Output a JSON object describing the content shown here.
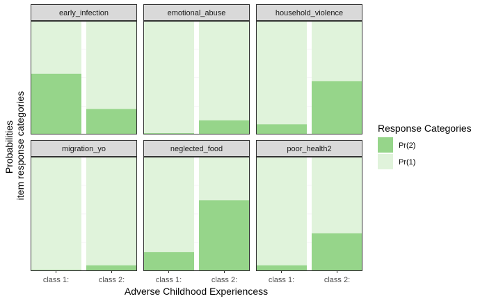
{
  "chart_data": {
    "type": "bar",
    "stacked": true,
    "facet_by": "item",
    "facet_layout": {
      "rows": 2,
      "cols": 3
    },
    "xlabel": "Adverse Childhood Experiencess",
    "ylabel_lines": [
      "Probabilities",
      "item response categories"
    ],
    "categories": [
      "class 1:",
      "class 2:"
    ],
    "ylim": [
      0,
      1
    ],
    "legend": {
      "title": "Response Categories",
      "placement": "right",
      "items": [
        {
          "label": "Pr(2)",
          "color": "#96d58a"
        },
        {
          "label": "Pr(1)",
          "color": "#e0f3db"
        }
      ]
    },
    "series": [
      {
        "name": "Pr(2)",
        "color": "#96d58a"
      },
      {
        "name": "Pr(1)",
        "color": "#e0f3db"
      }
    ],
    "facets": [
      {
        "label": "early_infection",
        "pr2": [
          0.535,
          0.225
        ]
      },
      {
        "label": "emotional_abuse",
        "pr2": [
          0.012,
          0.125
        ]
      },
      {
        "label": "household_violence",
        "pr2": [
          0.09,
          0.47
        ]
      },
      {
        "label": "migration_yo",
        "pr2": [
          0.01,
          0.05
        ]
      },
      {
        "label": "neglected_food",
        "pr2": [
          0.165,
          0.62
        ]
      },
      {
        "label": "poor_health2",
        "pr2": [
          0.05,
          0.33
        ]
      }
    ]
  }
}
